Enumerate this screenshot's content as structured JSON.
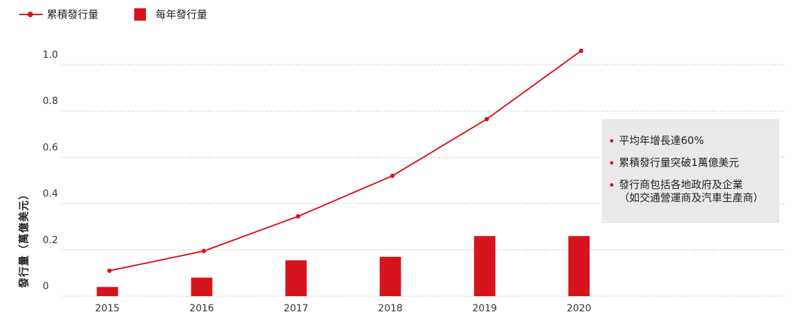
{
  "colors": {
    "accent": "#d7141e",
    "grid": "#9a9a9a",
    "box": "#e9e9e9"
  },
  "legend": {
    "line_label": "累積發行量",
    "bar_label": "每年發行量"
  },
  "notes": [
    "平均年增長達60%",
    "累積發行量突破1萬億美元",
    "發行商包括各地政府及企業\n（如交通營運商及汽車生產商）"
  ],
  "chart_data": {
    "type": "bar",
    "categories": [
      "2015",
      "2016",
      "2017",
      "2018",
      "2019",
      "2020"
    ],
    "series": [
      {
        "name": "累積發行量",
        "type": "line",
        "values": [
          0.11,
          0.195,
          0.345,
          0.52,
          0.765,
          1.06
        ]
      },
      {
        "name": "每年發行量",
        "type": "bar",
        "values": [
          0.04,
          0.08,
          0.155,
          0.17,
          0.26,
          0.26
        ]
      }
    ],
    "ylabel": "發行量（萬億美元）",
    "ylim": [
      0,
      1.1
    ],
    "yticks": [
      0,
      0.2,
      0.4,
      0.6,
      0.8,
      1.0
    ],
    "ytick_labels": [
      "0",
      "0.2",
      "0.4",
      "0.6",
      "0.8",
      "1.0"
    ],
    "grid": true,
    "legend_position": "top-left"
  }
}
